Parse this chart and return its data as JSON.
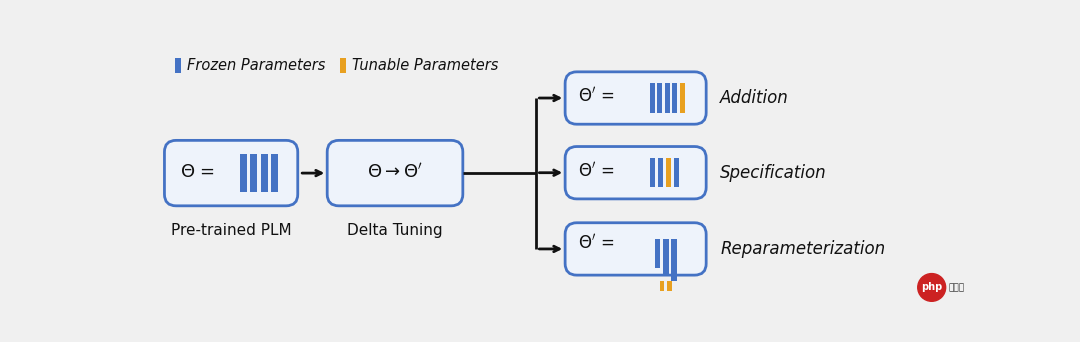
{
  "bg_color": "#f0f0f0",
  "border_color": "#cccccc",
  "blue_color": "#4472C4",
  "orange_color": "#E8A020",
  "text_color": "#111111",
  "box_edge_color": "#4472C4",
  "box_face_color": "#EEF3FB",
  "legend_frozen": "Frozen Parameters",
  "legend_tunable": "Tunable Parameters",
  "label_plm": "Pre-trained PLM",
  "label_delta": "Delta Tuning",
  "label_addition": "Addition",
  "label_specification": "Specification",
  "label_reparameterization": "Reparameterization"
}
